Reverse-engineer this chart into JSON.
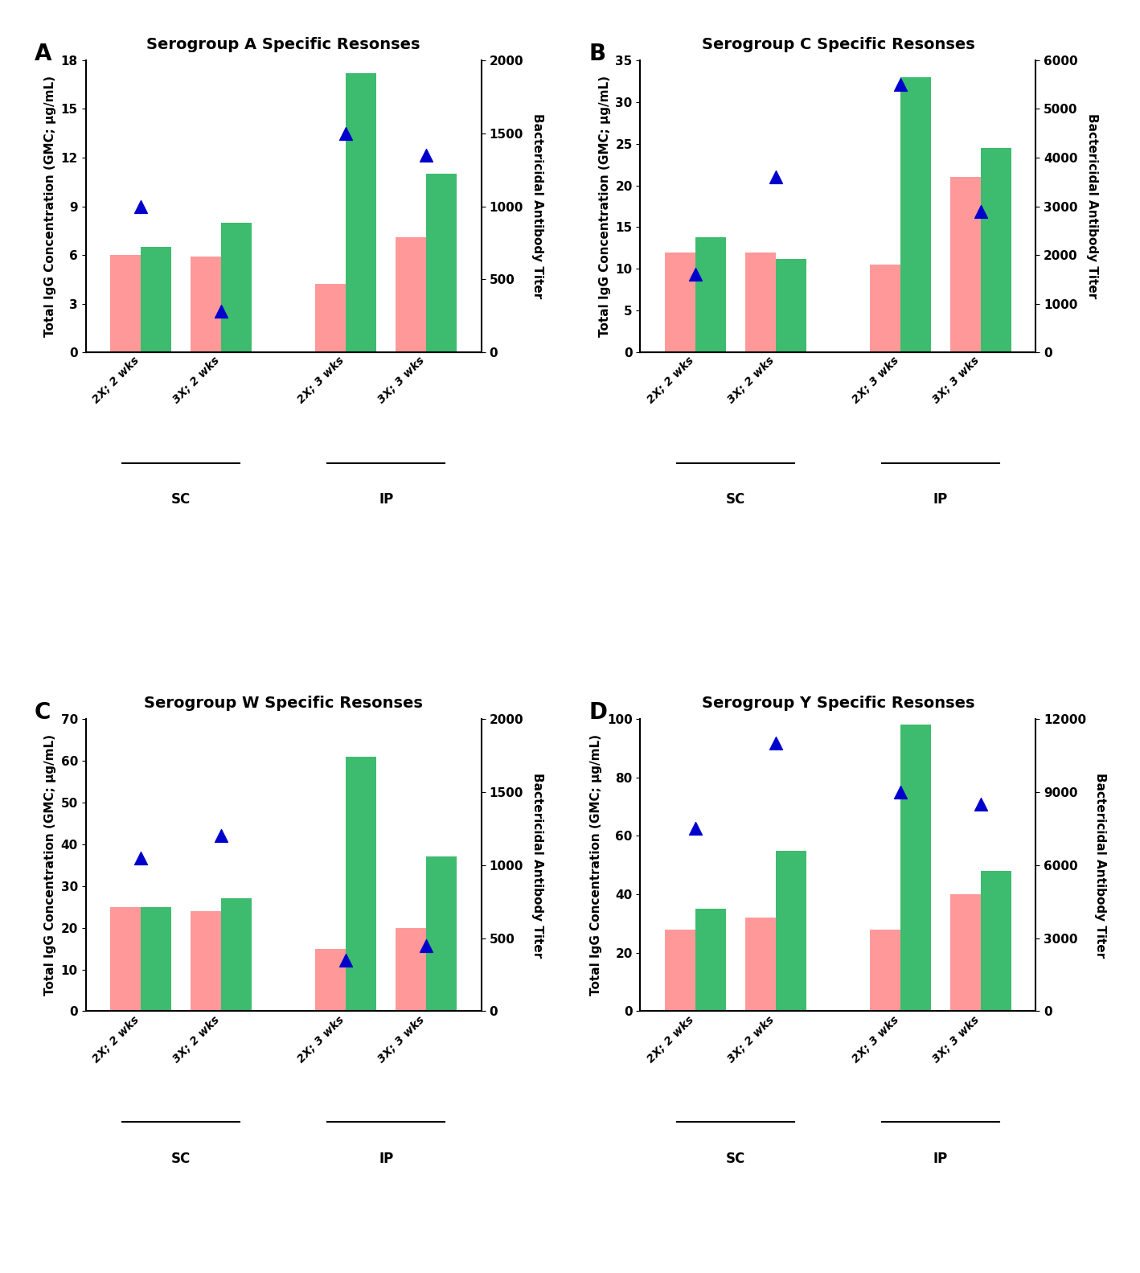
{
  "panels": [
    {
      "label": "A",
      "title": "Serogroup A Specific Resonses",
      "ylim_left": [
        0,
        18
      ],
      "ylim_right": [
        0,
        2000
      ],
      "yticks_left": [
        0,
        3,
        6,
        9,
        12,
        15,
        18
      ],
      "yticks_right": [
        0,
        500,
        1000,
        1500,
        2000
      ],
      "bar_pink": [
        6.0,
        5.9,
        4.2,
        7.1
      ],
      "bar_green": [
        6.5,
        8.0,
        17.2,
        11.0
      ],
      "triangles": [
        1000,
        280,
        1500,
        1350
      ]
    },
    {
      "label": "B",
      "title": "Serogroup C Specific Resonses",
      "ylim_left": [
        0,
        35
      ],
      "ylim_right": [
        0,
        6000
      ],
      "yticks_left": [
        0,
        5,
        10,
        15,
        20,
        25,
        30,
        35
      ],
      "yticks_right": [
        0,
        1000,
        2000,
        3000,
        4000,
        5000,
        6000
      ],
      "bar_pink": [
        12.0,
        12.0,
        10.5,
        21.0
      ],
      "bar_green": [
        13.8,
        11.2,
        33.0,
        24.5
      ],
      "triangles": [
        1600,
        3600,
        5500,
        2900
      ]
    },
    {
      "label": "C",
      "title": "Serogroup W Specific Resonses",
      "ylim_left": [
        0,
        70
      ],
      "ylim_right": [
        0,
        2000
      ],
      "yticks_left": [
        0,
        10,
        20,
        30,
        40,
        50,
        60,
        70
      ],
      "yticks_right": [
        0,
        500,
        1000,
        1500,
        2000
      ],
      "bar_pink": [
        25.0,
        24.0,
        15.0,
        20.0
      ],
      "bar_green": [
        25.0,
        27.0,
        61.0,
        37.0
      ],
      "triangles": [
        1050,
        1200,
        350,
        450
      ]
    },
    {
      "label": "D",
      "title": "Serogroup Y Specific Resonses",
      "ylim_left": [
        0,
        100
      ],
      "ylim_right": [
        0,
        12000
      ],
      "yticks_left": [
        0,
        20,
        40,
        60,
        80,
        100
      ],
      "yticks_right": [
        0,
        3000,
        6000,
        9000,
        12000
      ],
      "bar_pink": [
        28.0,
        32.0,
        28.0,
        40.0
      ],
      "bar_green": [
        35.0,
        55.0,
        98.0,
        48.0
      ],
      "triangles": [
        7500,
        11000,
        9000,
        8500
      ]
    }
  ],
  "categories": [
    "2X; 2 wks",
    "3X; 2 wks",
    "2X; 3 wks",
    "3X; 3 wks"
  ],
  "bar_pink_color": "#FF9999",
  "bar_green_color": "#3DBB6E",
  "triangle_color": "#0000CC",
  "ylabel_left": "Total IgG Concentration (GMC; μg/mL)",
  "ylabel_right": "Bactericidal Antibody Titer",
  "bar_width": 0.38
}
